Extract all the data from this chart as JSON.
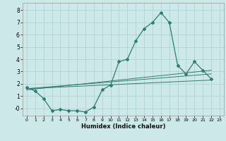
{
  "title": "",
  "xlabel": "Humidex (Indice chaleur)",
  "bg_color": "#cde8e8",
  "line_color": "#2e7d72",
  "grid_color": "#aacfcf",
  "xlim": [
    -0.5,
    23.5
  ],
  "ylim": [
    -0.6,
    8.6
  ],
  "xticks": [
    0,
    1,
    2,
    3,
    4,
    5,
    6,
    7,
    8,
    9,
    10,
    11,
    12,
    13,
    14,
    15,
    16,
    17,
    18,
    19,
    20,
    21,
    22,
    23
  ],
  "yticks": [
    0,
    1,
    2,
    3,
    4,
    5,
    6,
    7,
    8
  ],
  "ytick_labels": [
    "-0",
    "1",
    "2",
    "3",
    "4",
    "5",
    "6",
    "7",
    "8"
  ],
  "series": {
    "main": {
      "x": [
        0,
        1,
        2,
        3,
        4,
        5,
        6,
        7,
        8,
        9,
        10,
        11,
        12,
        13,
        14,
        15,
        16,
        17,
        18,
        19,
        20,
        21,
        22
      ],
      "y": [
        1.7,
        1.4,
        0.8,
        -0.2,
        -0.1,
        -0.2,
        -0.2,
        -0.3,
        0.1,
        1.5,
        1.9,
        3.8,
        4.0,
        5.5,
        6.5,
        7.0,
        7.8,
        7.0,
        3.5,
        2.8,
        3.8,
        3.1,
        2.4
      ]
    },
    "linear1": {
      "x": [
        0,
        22
      ],
      "y": [
        1.6,
        2.3
      ]
    },
    "linear2": {
      "x": [
        0,
        22
      ],
      "y": [
        1.6,
        2.8
      ]
    },
    "linear3": {
      "x": [
        0,
        22
      ],
      "y": [
        1.5,
        3.1
      ]
    }
  }
}
